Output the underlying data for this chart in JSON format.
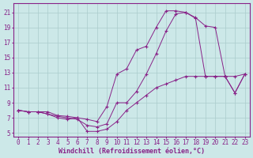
{
  "xlabel": "Windchill (Refroidissement éolien,°C)",
  "bg_color": "#cce8e8",
  "grid_color": "#aacccc",
  "line_color": "#882288",
  "xlim": [
    -0.5,
    23.5
  ],
  "ylim": [
    4.5,
    22.2
  ],
  "xticks": [
    0,
    1,
    2,
    3,
    4,
    5,
    6,
    7,
    8,
    9,
    10,
    11,
    12,
    13,
    14,
    15,
    16,
    17,
    18,
    19,
    20,
    21,
    22,
    23
  ],
  "yticks": [
    5,
    7,
    9,
    11,
    13,
    15,
    17,
    19,
    21
  ],
  "line1_x": [
    0,
    1,
    2,
    3,
    4,
    5,
    6,
    7,
    8,
    9,
    10,
    11,
    12,
    13,
    14,
    15,
    16,
    17,
    18,
    19,
    20,
    21,
    22,
    23
  ],
  "line1_y": [
    8.0,
    7.8,
    7.8,
    7.8,
    7.3,
    7.2,
    7.0,
    6.8,
    6.5,
    8.5,
    12.8,
    13.5,
    16.0,
    16.5,
    19.0,
    21.2,
    21.2,
    21.0,
    20.2,
    12.5,
    12.5,
    12.5,
    10.3,
    12.8
  ],
  "line2_x": [
    0,
    1,
    2,
    3,
    4,
    5,
    6,
    7,
    8,
    9,
    10,
    11,
    12,
    13,
    14,
    15,
    16,
    17,
    18,
    19,
    20,
    21,
    22,
    23
  ],
  "line2_y": [
    8.0,
    7.8,
    7.8,
    7.5,
    7.2,
    7.0,
    6.8,
    6.0,
    5.8,
    6.2,
    9.0,
    9.0,
    10.5,
    12.8,
    15.5,
    18.5,
    20.8,
    21.0,
    20.3,
    19.2,
    19.0,
    12.5,
    10.3,
    12.8
  ],
  "line3_x": [
    0,
    1,
    2,
    3,
    4,
    5,
    6,
    7,
    8,
    9,
    10,
    11,
    12,
    13,
    14,
    15,
    16,
    17,
    18,
    19,
    20,
    21,
    22,
    23
  ],
  "line3_y": [
    8.0,
    7.8,
    7.8,
    7.5,
    7.0,
    6.8,
    7.0,
    5.2,
    5.2,
    5.5,
    6.5,
    8.0,
    9.0,
    10.0,
    11.0,
    11.5,
    12.0,
    12.5,
    12.5,
    12.5,
    12.5,
    12.5,
    12.5,
    12.8
  ],
  "tick_fontsize": 5.5,
  "label_fontsize": 6.0
}
